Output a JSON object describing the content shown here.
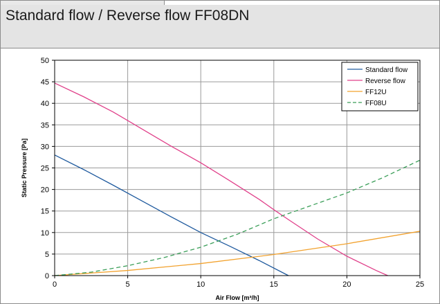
{
  "window": {
    "title": "Standard flow / Reverse flow FF08DN"
  },
  "chart_data": {
    "type": "line",
    "xlabel": "Air Flow [m³/h]",
    "ylabel": "Static Pressure [Pa]",
    "xlim": [
      0,
      25
    ],
    "ylim": [
      0,
      50
    ],
    "xticks": [
      0,
      5,
      10,
      15,
      20,
      25
    ],
    "yticks": [
      0,
      5,
      10,
      15,
      20,
      25,
      30,
      35,
      40,
      45,
      50
    ],
    "grid": true,
    "legend_position": "top-right",
    "series": [
      {
        "name": "Standard flow",
        "color": "#1f5a9e",
        "dash": "solid",
        "x": [
          0,
          2,
          4,
          6,
          8,
          10,
          12,
          14,
          16
        ],
        "y": [
          28,
          24.6,
          21,
          17.3,
          13.6,
          10,
          6.8,
          3.5,
          0
        ]
      },
      {
        "name": "Reverse flow",
        "color": "#e0408a",
        "dash": "solid",
        "x": [
          0,
          2,
          4,
          5,
          6,
          8,
          10,
          12,
          14,
          15,
          16,
          18,
          20,
          22,
          22.8
        ],
        "y": [
          44.7,
          41.5,
          38,
          36,
          34,
          30,
          26.2,
          22,
          17.7,
          15.3,
          13,
          8.5,
          4.5,
          1.2,
          0
        ]
      },
      {
        "name": "FF12U",
        "color": "#f2a22e",
        "dash": "solid",
        "x": [
          0,
          5,
          10,
          15,
          20,
          25
        ],
        "y": [
          0,
          1.2,
          2.8,
          4.9,
          7.4,
          10.3
        ]
      },
      {
        "name": "FF08U",
        "color": "#3a9e58",
        "dash": "dashed",
        "x": [
          0,
          2.5,
          5,
          7.5,
          10,
          12.5,
          15,
          17.5,
          20,
          22.5,
          25
        ],
        "y": [
          0,
          0.8,
          2.3,
          4.2,
          6.6,
          9.6,
          13.2,
          16.2,
          19.2,
          22.8,
          26.8
        ]
      }
    ]
  }
}
